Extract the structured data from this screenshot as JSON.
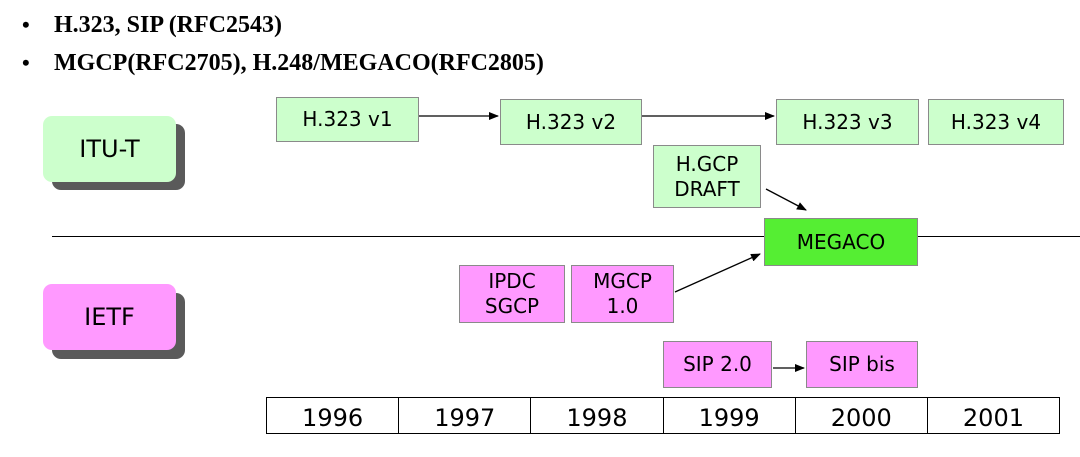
{
  "bullets": [
    {
      "marker": "•",
      "text": "H.323, SIP (RFC2543)"
    },
    {
      "marker": "•",
      "text": "MGCP(RFC2705), H.248/MEGACO(RFC2805)"
    }
  ],
  "orgs": {
    "itu_t": "ITU-T",
    "ietf": "IETF"
  },
  "itu_boxes": {
    "h323_v1": "H.323 v1",
    "h323_v2": "H.323 v2",
    "h323_v3": "H.323 v3",
    "h323_v4": "H.323 v4",
    "h_gcp_draft": "H.GCP\nDRAFT"
  },
  "megaco": "MEGACO",
  "ietf_boxes": {
    "ipdc_sgcp": "IPDC\nSGCP",
    "mgcp_1_0": "MGCP\n1.0",
    "sip_2_0": "SIP 2.0",
    "sip_bis": "SIP bis"
  },
  "timeline_years": [
    "1996",
    "1997",
    "1998",
    "1999",
    "2000",
    "2001"
  ],
  "colors": {
    "itu_fill": "#ccffcc",
    "ietf_fill": "#ff99ff",
    "megaco_fill": "#55ee33"
  }
}
